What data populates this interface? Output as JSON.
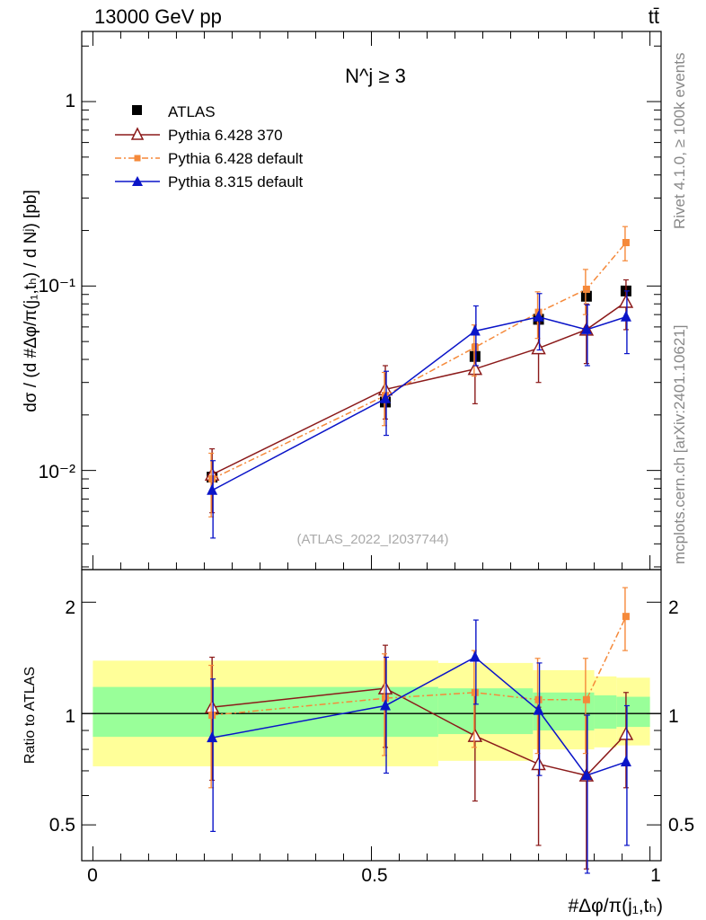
{
  "header": {
    "left": "13000 GeV pp",
    "right": "tt̄"
  },
  "side_text": {
    "rivet": "Rivet 4.1.0, ≥ 100k events",
    "mcplots": "mcplots.cern.ch [arXiv:2401.10621]"
  },
  "colors": {
    "atlas": "#000000",
    "py6_370": "#8b1a1a",
    "py6_def": "#f5893a",
    "py8": "#0a14c8",
    "band_outer": "#ffff99",
    "band_inner": "#99ff99"
  },
  "chart_data": [
    {
      "type": "scatter",
      "panel": "main",
      "title": "N^j ≥ 3",
      "watermark": "(ATLAS_2022_I2037744)",
      "ylabel": "dσ / (d #Δφ/π(j₁,tₕ) / d Nʲ) [pb]",
      "yscale": "log",
      "ylim": [
        0.0029,
        2.4
      ],
      "xlim": [
        -0.02,
        1.02
      ],
      "ytick_labels": [
        "1",
        "10⁻¹",
        "10⁻²"
      ],
      "x": [
        0.214,
        0.525,
        0.686,
        0.8,
        0.886,
        0.957
      ],
      "legend": [
        "ATLAS",
        "Pythia 6.428 370",
        "Pythia 6.428 default",
        "Pythia 8.315 default"
      ],
      "series": [
        {
          "name": "ATLAS",
          "values": [
            0.0092,
            0.0235,
            0.0415,
            0.066,
            0.088,
            0.094
          ]
        },
        {
          "name": "Pythia 6.428 370",
          "values": [
            0.0095,
            0.0275,
            0.0355,
            0.046,
            0.058,
            0.082
          ],
          "err_lo": [
            0.0036,
            0.0085,
            0.0125,
            0.016,
            0.02,
            0.024
          ],
          "err_hi": [
            0.0036,
            0.0095,
            0.013,
            0.017,
            0.022,
            0.026
          ]
        },
        {
          "name": "Pythia 6.428 default",
          "values": [
            0.009,
            0.0255,
            0.0465,
            0.072,
            0.096,
            0.172
          ],
          "err_lo": [
            0.0034,
            0.008,
            0.014,
            0.02,
            0.026,
            0.035
          ],
          "err_hi": [
            0.0034,
            0.0085,
            0.015,
            0.021,
            0.027,
            0.038
          ]
        },
        {
          "name": "Pythia 8.315 default",
          "values": [
            0.0078,
            0.0245,
            0.057,
            0.068,
            0.058,
            0.068
          ],
          "err_lo": [
            0.0035,
            0.009,
            0.02,
            0.023,
            0.021,
            0.025
          ],
          "err_hi": [
            0.0035,
            0.01,
            0.021,
            0.023,
            0.021,
            0.026
          ]
        }
      ]
    },
    {
      "type": "scatter",
      "panel": "ratio",
      "ylabel": "Ratio to ATLAS",
      "xlabel": "#Δφ/π(j₁,tₕ)",
      "yscale": "log",
      "ylim": [
        0.4,
        2.45
      ],
      "xlim": [
        -0.02,
        1.02
      ],
      "ytick_labels": [
        "2",
        "1",
        "0.5"
      ],
      "xtick_labels": [
        "0",
        "0.5",
        "1"
      ],
      "x": [
        0.214,
        0.525,
        0.686,
        0.8,
        0.886,
        0.957
      ],
      "bands": {
        "edges": [
          0.0,
          0.62,
          0.79,
          0.9,
          0.94,
          1.0
        ],
        "outer_lo": [
          0.72,
          0.745,
          0.8,
          0.81,
          0.82
        ],
        "outer_hi": [
          1.39,
          1.37,
          1.31,
          1.26,
          1.25
        ],
        "inner_lo": [
          0.865,
          0.88,
          0.9,
          0.91,
          0.92
        ],
        "inner_hi": [
          1.18,
          1.17,
          1.14,
          1.12,
          1.11
        ]
      },
      "series": [
        {
          "name": "Pythia 6.428 370",
          "values": [
            1.04,
            1.17,
            0.87,
            0.73,
            0.68,
            0.88
          ],
          "err_lo": [
            0.38,
            0.36,
            0.29,
            0.29,
            0.3,
            0.25
          ],
          "err_hi": [
            0.38,
            0.36,
            0.29,
            0.31,
            0.31,
            0.26
          ]
        },
        {
          "name": "Pythia 6.428 default",
          "values": [
            0.99,
            1.1,
            1.14,
            1.09,
            1.09,
            1.83
          ],
          "err_lo": [
            0.36,
            0.33,
            0.33,
            0.31,
            0.31,
            0.35
          ],
          "err_hi": [
            0.36,
            0.35,
            0.34,
            0.32,
            0.32,
            0.36
          ]
        },
        {
          "name": "Pythia 8.315 default",
          "values": [
            0.86,
            1.05,
            1.42,
            1.02,
            0.68,
            0.74
          ],
          "err_lo": [
            0.38,
            0.36,
            0.36,
            0.34,
            0.31,
            0.3
          ],
          "err_hi": [
            0.38,
            0.37,
            0.37,
            0.35,
            0.31,
            0.31
          ]
        }
      ]
    }
  ]
}
